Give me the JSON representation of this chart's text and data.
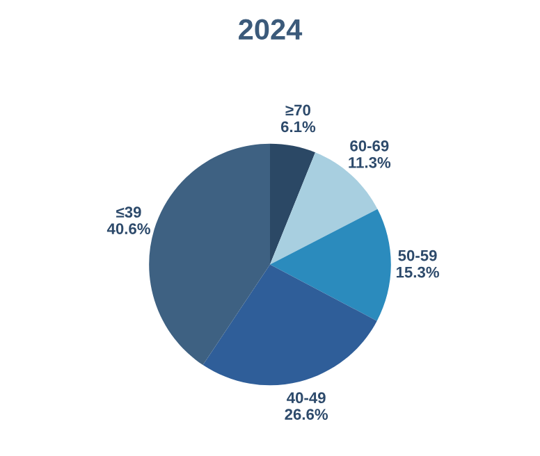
{
  "chart_data": {
    "type": "pie",
    "title": "2024",
    "categories": [
      "≥70",
      "60-69",
      "50-59",
      "40-49",
      "≤39"
    ],
    "values": [
      6.1,
      11.3,
      15.3,
      26.6,
      40.6
    ],
    "value_labels": [
      "6.1%",
      "11.3%",
      "15.3%",
      "26.6%",
      "40.6%"
    ],
    "colors": [
      "#2b4865",
      "#a8cfe0",
      "#2b8bbd",
      "#2f5e99",
      "#3e6182"
    ]
  }
}
